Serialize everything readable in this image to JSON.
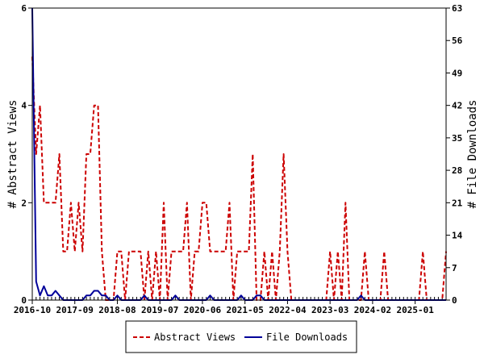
{
  "chart_data": {
    "type": "line",
    "title": "",
    "ylabel_left": "# Abstract Views",
    "ylabel_right": "# File Downloads",
    "xlabel": "",
    "x_tick_labels": [
      "2016-10",
      "2017-09",
      "2018-08",
      "2019-07",
      "2020-06",
      "2021-05",
      "2022-04",
      "2023-03",
      "2024-02",
      "2025-01"
    ],
    "y_left_ticks": [
      0,
      2,
      4,
      6
    ],
    "y_right_ticks": [
      0,
      7,
      14,
      21,
      28,
      35,
      42,
      49,
      56,
      63
    ],
    "y_left_range": [
      0,
      6
    ],
    "y_right_range": [
      0,
      63
    ],
    "x_range_months": [
      0,
      107
    ],
    "grid": false,
    "legend_position": "bottom",
    "series": [
      {
        "name": "Abstract Views",
        "axis": "left",
        "color": "#cc0000",
        "style": "dashed",
        "values": [
          5,
          3,
          4,
          2,
          2,
          2,
          2,
          3,
          1,
          1,
          2,
          1,
          2,
          1,
          3,
          3,
          4,
          4,
          1,
          0,
          0,
          0,
          1,
          1,
          0,
          1,
          1,
          1,
          1,
          0,
          1,
          0,
          1,
          0,
          2,
          0,
          1,
          1,
          1,
          1,
          2,
          0,
          1,
          1,
          2,
          2,
          1,
          1,
          1,
          1,
          1,
          2,
          0,
          1,
          1,
          1,
          1,
          3,
          0,
          0,
          1,
          0,
          1,
          0,
          1,
          3,
          1,
          0,
          0,
          0,
          0,
          0,
          0,
          0,
          0,
          0,
          0,
          1,
          0,
          1,
          0,
          2,
          0,
          0,
          0,
          0,
          1,
          0,
          0,
          0,
          0,
          1,
          0,
          0,
          0,
          0,
          0,
          0,
          0,
          0,
          0,
          1,
          0,
          0,
          0,
          0,
          0,
          1
        ]
      },
      {
        "name": "File Downloads",
        "axis": "right",
        "color": "#000099",
        "style": "solid",
        "values": [
          63,
          4,
          1,
          3,
          1,
          1,
          2,
          1,
          0,
          0,
          0,
          0,
          0,
          0,
          1,
          1,
          2,
          2,
          1,
          1,
          0,
          0,
          1,
          0,
          0,
          0,
          0,
          0,
          0,
          1,
          0,
          0,
          0,
          0,
          0,
          0,
          0,
          1,
          0,
          0,
          0,
          0,
          0,
          0,
          0,
          0,
          1,
          0,
          0,
          0,
          0,
          0,
          0,
          0,
          1,
          0,
          0,
          0,
          1,
          1,
          0,
          0,
          0,
          0,
          0,
          0,
          0,
          0,
          0,
          0,
          0,
          0,
          0,
          0,
          0,
          0,
          0,
          0,
          0,
          0,
          0,
          0,
          0,
          0,
          0,
          1,
          0,
          0,
          0,
          0,
          0,
          0,
          0,
          0,
          0,
          0,
          0,
          0,
          0,
          0,
          0,
          0,
          0,
          0,
          0,
          0,
          0,
          0
        ]
      }
    ]
  }
}
